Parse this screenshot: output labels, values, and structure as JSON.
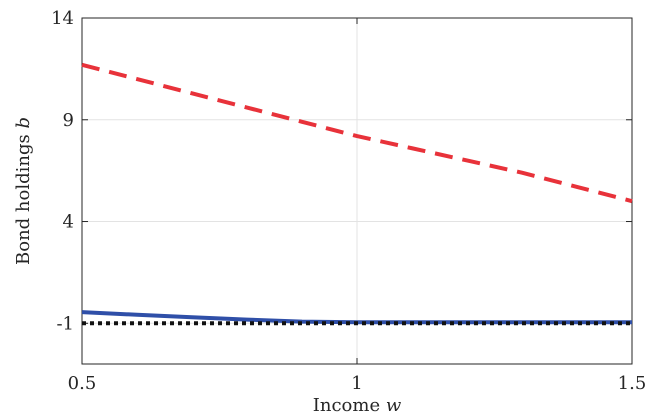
{
  "chart_data": {
    "type": "line",
    "title": "",
    "xlabel": "Income",
    "xlabel_var": "w",
    "ylabel": "Bond holdings",
    "ylabel_var": "b",
    "xlim": [
      0.5,
      1.5
    ],
    "ylim": [
      -3,
      14
    ],
    "xticks": [
      "0.5",
      "1",
      "1.5"
    ],
    "yticks": [
      "-1",
      "4",
      "9",
      "14"
    ],
    "grid": true,
    "legend": "none",
    "series": [
      {
        "style": "dashed",
        "color": "#e8323a",
        "x": [
          0.5,
          0.6,
          0.7,
          0.8,
          0.9,
          1.0,
          1.1,
          1.2,
          1.3,
          1.4,
          1.5
        ],
        "y": [
          11.7,
          11.0,
          10.3,
          9.6,
          8.9,
          8.2,
          7.6,
          7.0,
          6.4,
          5.7,
          5.0
        ]
      },
      {
        "style": "solid",
        "color": "#2f4fa8",
        "x": [
          0.5,
          0.6,
          0.7,
          0.8,
          0.9,
          1.0,
          1.1,
          1.2,
          1.3,
          1.4,
          1.5
        ],
        "y": [
          -0.45,
          -0.58,
          -0.7,
          -0.82,
          -0.92,
          -0.95,
          -0.95,
          -0.95,
          -0.95,
          -0.95,
          -0.95
        ]
      },
      {
        "style": "dotted",
        "color": "#111111",
        "x": [
          0.5,
          1.5
        ],
        "y": [
          -1.0,
          -1.0
        ]
      }
    ]
  }
}
